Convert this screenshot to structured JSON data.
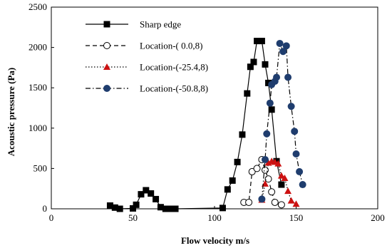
{
  "chart_data": {
    "type": "scatter",
    "xlabel": "Flow velocity m/s",
    "ylabel": "Acoustic pressure (Pa)",
    "xlim": [
      0,
      200
    ],
    "ylim": [
      0,
      2500
    ],
    "xticks": [
      "0",
      "50",
      "100",
      "150",
      "200"
    ],
    "yticks": [
      "0",
      "500",
      "1000",
      "1500",
      "2000",
      "2500"
    ],
    "grid": false,
    "legend_position": "top-left",
    "series": [
      {
        "name": "Sharp edge",
        "marker": "filled-square",
        "line": "solid",
        "color": "#000000",
        "points": [
          [
            36,
            40
          ],
          [
            39,
            15
          ],
          [
            42,
            0
          ],
          [
            50,
            5
          ],
          [
            52,
            50
          ],
          [
            55,
            180
          ],
          [
            58,
            230
          ],
          [
            61,
            190
          ],
          [
            64,
            120
          ],
          [
            67,
            20
          ],
          [
            70,
            0
          ],
          [
            73,
            0
          ],
          [
            76,
            0
          ],
          [
            105,
            10
          ],
          [
            108,
            240
          ],
          [
            111,
            350
          ],
          [
            114,
            580
          ],
          [
            117,
            920
          ],
          [
            120,
            1430
          ],
          [
            122,
            1760
          ],
          [
            124,
            1820
          ],
          [
            126,
            2080
          ],
          [
            129,
            2080
          ],
          [
            131,
            1790
          ],
          [
            133,
            1560
          ],
          [
            135,
            1230
          ],
          [
            138,
            590
          ],
          [
            141,
            300
          ]
        ]
      },
      {
        "name": "Location-( 0.0,8)",
        "marker": "open-circle",
        "line": "dashed",
        "color": "#000000",
        "points": [
          [
            118,
            80
          ],
          [
            121,
            80
          ],
          [
            123,
            460
          ],
          [
            126,
            500
          ],
          [
            129,
            610
          ],
          [
            131,
            480
          ],
          [
            133,
            370
          ],
          [
            135,
            210
          ],
          [
            137,
            80
          ],
          [
            141,
            50
          ]
        ]
      },
      {
        "name": "Location-(-25.4,8)",
        "marker": "filled-triangle",
        "line": "dotted",
        "color": "#cc1111",
        "points": [
          [
            129,
            110
          ],
          [
            131,
            310
          ],
          [
            133,
            570
          ],
          [
            135,
            590
          ],
          [
            137,
            580
          ],
          [
            139,
            560
          ],
          [
            141,
            410
          ],
          [
            143,
            380
          ],
          [
            145,
            220
          ],
          [
            147,
            100
          ],
          [
            150,
            60
          ]
        ]
      },
      {
        "name": "Location-(-50.8,8)",
        "marker": "filled-circle",
        "line": "dashdot",
        "color": "#1f3d6e",
        "points": [
          [
            129,
            120
          ],
          [
            131,
            610
          ],
          [
            132,
            930
          ],
          [
            134,
            1310
          ],
          [
            135,
            1540
          ],
          [
            137,
            1580
          ],
          [
            138,
            1630
          ],
          [
            140,
            2050
          ],
          [
            142,
            1950
          ],
          [
            144,
            2020
          ],
          [
            145,
            1630
          ],
          [
            147,
            1270
          ],
          [
            149,
            960
          ],
          [
            150,
            680
          ],
          [
            152,
            460
          ],
          [
            154,
            300
          ]
        ]
      }
    ]
  }
}
